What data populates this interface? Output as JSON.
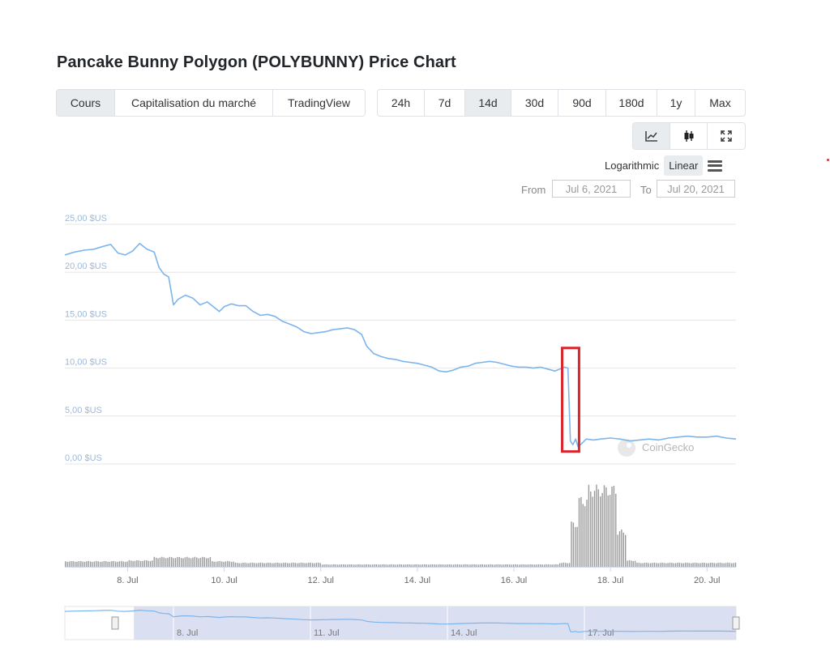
{
  "header": {
    "title": "Pancake Bunny Polygon (POLYBUNNY) Price Chart"
  },
  "view_tabs": [
    {
      "label": "Cours",
      "active": true
    },
    {
      "label": "Capitalisation du marché",
      "active": false
    },
    {
      "label": "TradingView",
      "active": false
    }
  ],
  "range_tabs": [
    {
      "label": "24h",
      "active": false
    },
    {
      "label": "7d",
      "active": false
    },
    {
      "label": "14d",
      "active": true
    },
    {
      "label": "30d",
      "active": false
    },
    {
      "label": "90d",
      "active": false
    },
    {
      "label": "180d",
      "active": false
    },
    {
      "label": "1y",
      "active": false
    },
    {
      "label": "Max",
      "active": false
    }
  ],
  "tools": [
    {
      "name": "line-chart-icon",
      "active": true
    },
    {
      "name": "candlestick-icon",
      "active": false
    },
    {
      "name": "fullscreen-icon",
      "active": false
    }
  ],
  "scale": {
    "log_label": "Logarithmic",
    "linear_label": "Linear",
    "active": "linear"
  },
  "date_range": {
    "from_label": "From",
    "from_value": "Jul 6, 2021",
    "to_label": "To",
    "to_value": "Jul 20, 2021"
  },
  "watermark": "CoinGecko",
  "colors": {
    "line": "#7cb5ec",
    "volume": "#999999",
    "highlight": "#d9252b",
    "navigator_mask": "#d4daf0",
    "grid": "#e6e6e6"
  },
  "chart_data": {
    "type": "line",
    "title": "",
    "x_unit": "days in July 2021",
    "xlim": [
      6.7,
      20.6
    ],
    "ylim": [
      0,
      25
    ],
    "y_ticks": [
      {
        "value": 0,
        "label": "0,00 $US"
      },
      {
        "value": 5,
        "label": "5,00 $US"
      },
      {
        "value": 10,
        "label": "10,00 $US"
      },
      {
        "value": 15,
        "label": "15,00 $US"
      },
      {
        "value": 20,
        "label": "20,00 $US"
      },
      {
        "value": 25,
        "label": "25,00 $US"
      }
    ],
    "x_ticks": [
      {
        "value": 8,
        "label": "8. Jul"
      },
      {
        "value": 10,
        "label": "10. Jul"
      },
      {
        "value": 12,
        "label": "12. Jul"
      },
      {
        "value": 14,
        "label": "14. Jul"
      },
      {
        "value": 16,
        "label": "16. Jul"
      },
      {
        "value": 18,
        "label": "18. Jul"
      },
      {
        "value": 20,
        "label": "20. Jul"
      }
    ],
    "series": [
      {
        "values": [
          [
            6.7,
            21.8
          ],
          [
            6.9,
            22.1
          ],
          [
            7.1,
            22.3
          ],
          [
            7.3,
            22.4
          ],
          [
            7.5,
            22.7
          ],
          [
            7.65,
            22.9
          ],
          [
            7.8,
            22.0
          ],
          [
            7.95,
            21.8
          ],
          [
            8.1,
            22.2
          ],
          [
            8.25,
            23.0
          ],
          [
            8.4,
            22.4
          ],
          [
            8.55,
            22.1
          ],
          [
            8.65,
            20.5
          ],
          [
            8.75,
            19.8
          ],
          [
            8.85,
            19.5
          ],
          [
            8.95,
            16.6
          ],
          [
            9.05,
            17.2
          ],
          [
            9.2,
            17.6
          ],
          [
            9.35,
            17.3
          ],
          [
            9.5,
            16.6
          ],
          [
            9.65,
            16.9
          ],
          [
            9.8,
            16.3
          ],
          [
            9.9,
            15.9
          ],
          [
            10.0,
            16.4
          ],
          [
            10.15,
            16.7
          ],
          [
            10.3,
            16.5
          ],
          [
            10.45,
            16.5
          ],
          [
            10.6,
            15.9
          ],
          [
            10.75,
            15.5
          ],
          [
            10.9,
            15.6
          ],
          [
            11.05,
            15.4
          ],
          [
            11.2,
            14.9
          ],
          [
            11.35,
            14.6
          ],
          [
            11.5,
            14.3
          ],
          [
            11.65,
            13.8
          ],
          [
            11.8,
            13.6
          ],
          [
            11.95,
            13.7
          ],
          [
            12.1,
            13.8
          ],
          [
            12.25,
            14.0
          ],
          [
            12.4,
            14.1
          ],
          [
            12.55,
            14.2
          ],
          [
            12.7,
            14.0
          ],
          [
            12.85,
            13.5
          ],
          [
            12.95,
            12.3
          ],
          [
            13.1,
            11.5
          ],
          [
            13.25,
            11.2
          ],
          [
            13.4,
            11.0
          ],
          [
            13.55,
            10.9
          ],
          [
            13.7,
            10.7
          ],
          [
            13.85,
            10.6
          ],
          [
            14.0,
            10.5
          ],
          [
            14.15,
            10.3
          ],
          [
            14.3,
            10.1
          ],
          [
            14.45,
            9.7
          ],
          [
            14.6,
            9.6
          ],
          [
            14.75,
            9.8
          ],
          [
            14.9,
            10.1
          ],
          [
            15.05,
            10.2
          ],
          [
            15.2,
            10.5
          ],
          [
            15.35,
            10.6
          ],
          [
            15.5,
            10.7
          ],
          [
            15.65,
            10.6
          ],
          [
            15.8,
            10.4
          ],
          [
            15.95,
            10.2
          ],
          [
            16.1,
            10.1
          ],
          [
            16.25,
            10.1
          ],
          [
            16.4,
            10.0
          ],
          [
            16.55,
            10.1
          ],
          [
            16.7,
            9.9
          ],
          [
            16.85,
            9.7
          ],
          [
            16.95,
            9.9
          ],
          [
            17.05,
            10.1
          ],
          [
            17.12,
            10.0
          ],
          [
            17.17,
            2.4
          ],
          [
            17.22,
            2.0
          ],
          [
            17.28,
            2.6
          ],
          [
            17.33,
            1.8
          ],
          [
            17.4,
            2.1
          ],
          [
            17.5,
            2.6
          ],
          [
            17.65,
            2.5
          ],
          [
            17.8,
            2.6
          ],
          [
            18.0,
            2.7
          ],
          [
            18.2,
            2.6
          ],
          [
            18.4,
            2.4
          ],
          [
            18.6,
            2.5
          ],
          [
            18.8,
            2.6
          ],
          [
            19.0,
            2.5
          ],
          [
            19.2,
            2.7
          ],
          [
            19.4,
            2.8
          ],
          [
            19.6,
            2.9
          ],
          [
            19.8,
            2.8
          ],
          [
            20.0,
            2.8
          ],
          [
            20.2,
            2.9
          ],
          [
            20.4,
            2.7
          ],
          [
            20.6,
            2.6
          ]
        ]
      }
    ],
    "volume": {
      "note": "relative volume, 0..1 of panel height",
      "segments": [
        {
          "from": 6.7,
          "to": 8.0,
          "level": 0.07
        },
        {
          "from": 8.0,
          "to": 8.5,
          "level": 0.08
        },
        {
          "from": 8.5,
          "to": 9.0,
          "level": 0.12
        },
        {
          "from": 9.0,
          "to": 9.7,
          "level": 0.12
        },
        {
          "from": 9.7,
          "to": 10.2,
          "level": 0.07
        },
        {
          "from": 10.2,
          "to": 12.0,
          "level": 0.05
        },
        {
          "from": 12.0,
          "to": 16.9,
          "level": 0.03
        },
        {
          "from": 16.9,
          "to": 17.15,
          "level": 0.05
        },
        {
          "from": 17.15,
          "to": 17.3,
          "level": 0.55
        },
        {
          "from": 17.3,
          "to": 17.5,
          "level": 0.85
        },
        {
          "from": 17.5,
          "to": 18.1,
          "level": 0.99
        },
        {
          "from": 18.1,
          "to": 18.3,
          "level": 0.45
        },
        {
          "from": 18.3,
          "to": 18.5,
          "level": 0.08
        },
        {
          "from": 18.5,
          "to": 20.6,
          "level": 0.05
        }
      ]
    },
    "navigator": {
      "tick_labels": [
        "8. Jul",
        "11. Jul",
        "14. Jul",
        "17. Jul"
      ],
      "tick_values": [
        8,
        11,
        14,
        17
      ],
      "xlim": [
        6.3,
        20.6
      ],
      "selection": [
        6.7,
        20.6
      ]
    },
    "annotation": {
      "type": "rectangle",
      "x_range": [
        17.0,
        17.35
      ],
      "y_range": [
        1.3,
        12.1
      ]
    }
  }
}
